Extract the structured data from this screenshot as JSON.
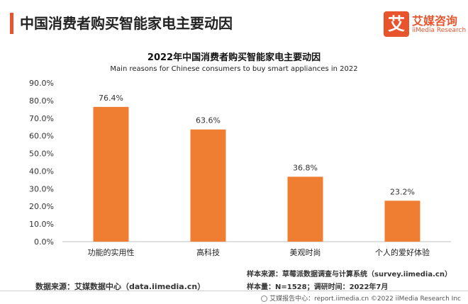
{
  "header": {
    "title": "中国消费者购买智能家电主要动因",
    "accent_color": "#e8542e"
  },
  "logo": {
    "glyph": "艾",
    "name_cn": "艾媒咨询",
    "name_en": "iiMedia Research",
    "color": "#e8542e"
  },
  "chart_data": {
    "type": "bar",
    "title": "2022年中国消费者购买智能家电主要动因",
    "subtitle": "Main reasons for Chinese consumers to buy smart appliances in 2022",
    "categories": [
      "功能的实用性",
      "高科技",
      "美观时尚",
      "个人的爱好体验"
    ],
    "values": [
      76.4,
      63.6,
      36.8,
      23.2
    ],
    "value_labels": [
      "76.4%",
      "63.6%",
      "36.8%",
      "23.2%"
    ],
    "ylim": [
      0,
      90
    ],
    "yticks": [
      0,
      10,
      20,
      30,
      40,
      50,
      60,
      70,
      80,
      90
    ],
    "ytick_labels": [
      "0.0%",
      "10.0%",
      "20.0%",
      "30.0%",
      "40.0%",
      "50.0%",
      "60.0%",
      "70.0%",
      "80.0%",
      "90.0%"
    ],
    "bar_color": "#ef7e32",
    "grid": false
  },
  "source": {
    "data_source": "数据来源：艾媒数据中心（data.iimedia.cn）",
    "sample_source": "样本来源：草莓派数据调查与计算系统（survey.iimedia.cn）",
    "sample_size": "样本量：N=1528；调研时间：2022年7月"
  },
  "footer": {
    "text": "艾媒报告中心：report.iimedia.cn ©2022 iiMedia Research Inc"
  }
}
